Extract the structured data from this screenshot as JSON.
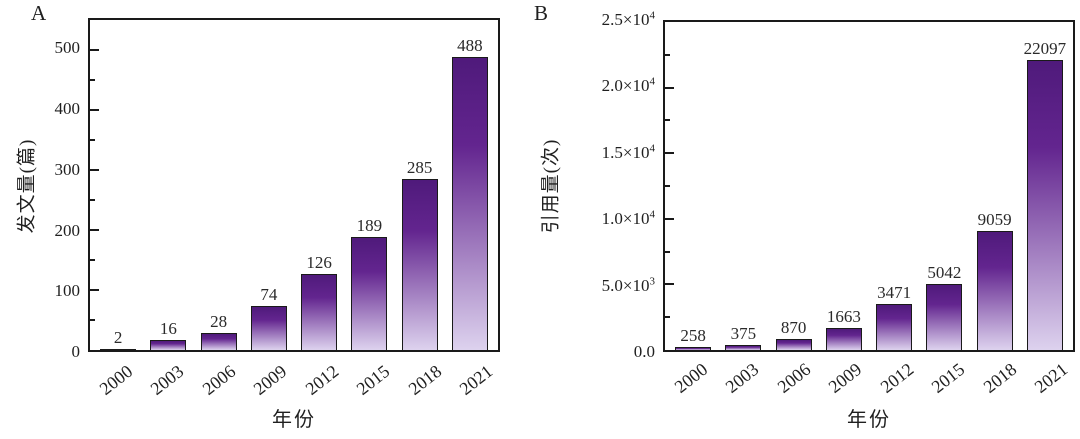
{
  "figure": {
    "background": "#ffffff",
    "text_color": "#1f1f1f"
  },
  "chart_data": [
    {
      "type": "bar",
      "panel_label": "A",
      "title": "",
      "xlabel": "年份",
      "ylabel": "发文量(篇)",
      "categories": [
        "2000",
        "2003",
        "2006",
        "2009",
        "2012",
        "2015",
        "2018",
        "2021"
      ],
      "values": [
        2,
        16,
        28,
        74,
        126,
        189,
        285,
        488
      ],
      "bar_labels": [
        "2",
        "16",
        "28",
        "74",
        "126",
        "189",
        "285",
        "488"
      ],
      "ylim": [
        0,
        550
      ],
      "yticks": [
        {
          "value": 0,
          "label": "0",
          "exp": ""
        },
        {
          "value": 100,
          "label": "100",
          "exp": ""
        },
        {
          "value": 200,
          "label": "200",
          "exp": ""
        },
        {
          "value": 300,
          "label": "300",
          "exp": ""
        },
        {
          "value": 400,
          "label": "400",
          "exp": ""
        },
        {
          "value": 500,
          "label": "500",
          "exp": ""
        }
      ],
      "minor_tick_step": 50,
      "grid": false,
      "legend": "none",
      "colors": {
        "bar_gradient_top": "#4f1a7b",
        "bar_gradient_mid": "#63258f",
        "bar_gradient_bottom": "#ddd2ee",
        "bar_border": "#1a1a1a",
        "axis": "#1a1a1a"
      }
    },
    {
      "type": "bar",
      "panel_label": "B",
      "title": "",
      "xlabel": "年份",
      "ylabel": "引用量(次)",
      "categories": [
        "2000",
        "2003",
        "2006",
        "2009",
        "2012",
        "2015",
        "2018",
        "2021"
      ],
      "values": [
        258,
        375,
        870,
        1663,
        3471,
        5042,
        9059,
        22097
      ],
      "bar_labels": [
        "258",
        "375",
        "870",
        "1663",
        "3471",
        "5042",
        "9059",
        "22097"
      ],
      "ylim": [
        0,
        25000
      ],
      "yticks": [
        {
          "value": 0,
          "label": "0.0",
          "exp": ""
        },
        {
          "value": 5000,
          "label": "5.0×10",
          "exp": "3"
        },
        {
          "value": 10000,
          "label": "1.0×10",
          "exp": "4"
        },
        {
          "value": 15000,
          "label": "1.5×10",
          "exp": "4"
        },
        {
          "value": 20000,
          "label": "2.0×10",
          "exp": "4"
        },
        {
          "value": 25000,
          "label": "2.5×10",
          "exp": "4"
        }
      ],
      "minor_tick_step": 2500,
      "grid": false,
      "legend": "none",
      "colors": {
        "bar_gradient_top": "#4f1a7b",
        "bar_gradient_mid": "#63258f",
        "bar_gradient_bottom": "#ddd2ee",
        "bar_border": "#1a1a1a",
        "axis": "#1a1a1a"
      }
    }
  ]
}
